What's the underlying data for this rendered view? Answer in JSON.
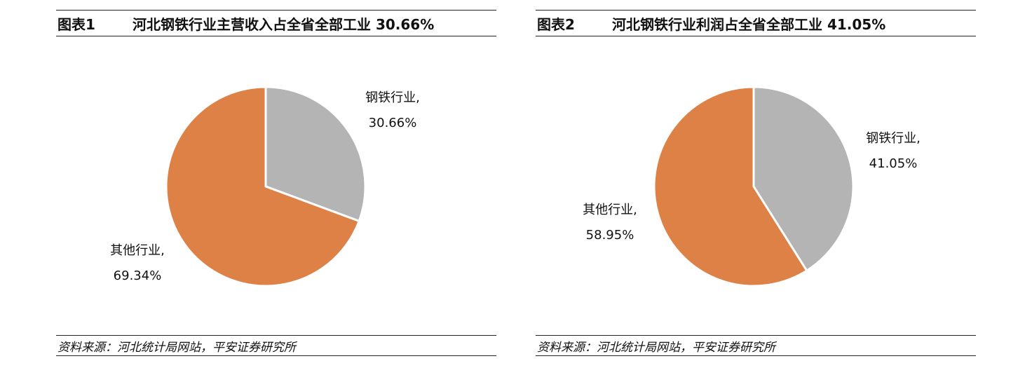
{
  "charts": [
    {
      "figure_label": "图表1",
      "title": "河北钢铁行业主营收入占全省全部工业 30.66%",
      "source": "资料来源：河北统计局网站，平安证券研究所",
      "slice_labels": [
        {
          "name": "钢铁行业,",
          "value_text": "30.66%"
        },
        {
          "name": "其他行业,",
          "value_text": "69.34%"
        }
      ]
    },
    {
      "figure_label": "图表2",
      "title": "河北钢铁行业利润占全省全部工业 41.05%",
      "source": "资料来源：河北统计局网站，平安证券研究所",
      "slice_labels": [
        {
          "name": "钢铁行业,",
          "value_text": "41.05%"
        },
        {
          "name": "其他行业,",
          "value_text": "58.95%"
        }
      ]
    }
  ],
  "chart_data": [
    {
      "type": "pie",
      "title": "河北钢铁行业主营收入占全省全部工业 30.66%",
      "categories": [
        "钢铁行业",
        "其他行业"
      ],
      "values": [
        30.66,
        69.34
      ],
      "colors": [
        "#b4b4b4",
        "#de8146"
      ],
      "start": "12 o'clock, clockwise"
    },
    {
      "type": "pie",
      "title": "河北钢铁行业利润占全省全部工业 41.05%",
      "categories": [
        "钢铁行业",
        "其他行业"
      ],
      "values": [
        41.05,
        58.95
      ],
      "colors": [
        "#b4b4b4",
        "#de8146"
      ],
      "start": "12 o'clock, clockwise"
    }
  ]
}
